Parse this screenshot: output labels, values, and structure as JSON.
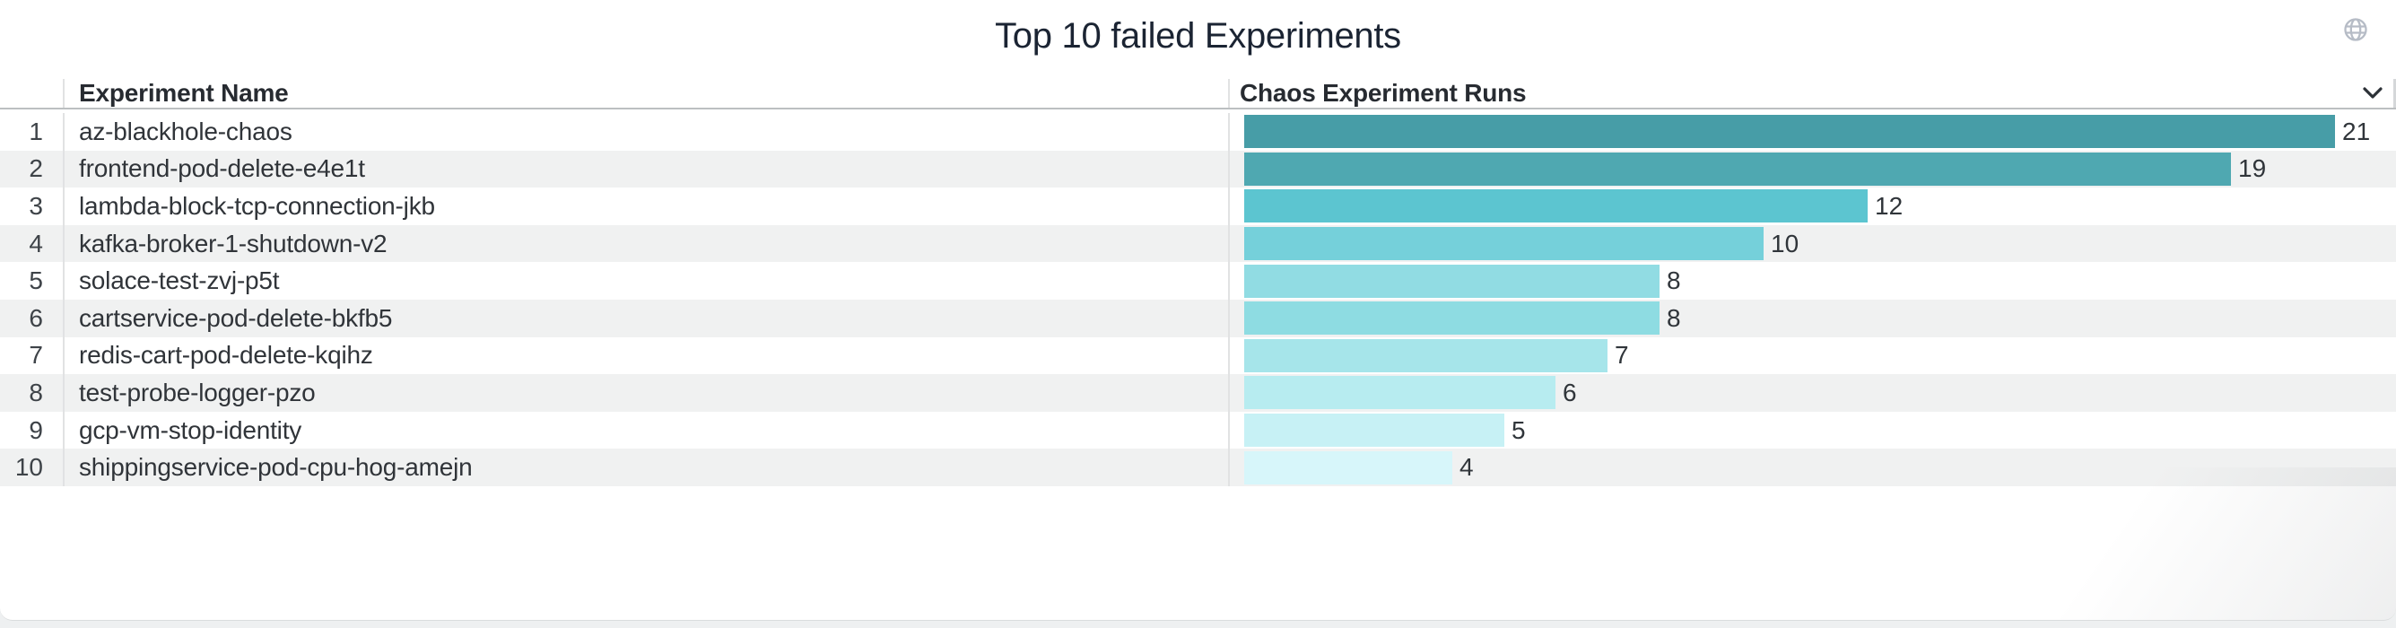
{
  "header": {
    "title": "Top 10 failed Experiments"
  },
  "icons": {
    "globe": "globe-icon",
    "chevron": "chevron-down-icon"
  },
  "table": {
    "columns": [
      "Experiment Name",
      "Chaos Experiment Runs"
    ]
  },
  "chart_data": {
    "type": "bar",
    "orientation": "horizontal",
    "title": "Top 10 failed Experiments",
    "categories": [
      "az-blackhole-chaos",
      "frontend-pod-delete-e4e1t",
      "lambda-block-tcp-connection-jkb",
      "kafka-broker-1-shutdown-v2",
      "solace-test-zvj-p5t",
      "cartservice-pod-delete-bkfb5",
      "redis-cart-pod-delete-kqihz",
      "test-probe-logger-pzo",
      "gcp-vm-stop-identity",
      "shippingservice-pod-cpu-hog-amejn"
    ],
    "ranks": [
      1,
      2,
      3,
      4,
      5,
      6,
      7,
      8,
      9,
      10
    ],
    "values": [
      21,
      19,
      12,
      10,
      8,
      8,
      7,
      6,
      5,
      4
    ],
    "xlabel": "Chaos Experiment Runs",
    "ylabel": "Experiment Name",
    "xlim": [
      0,
      21
    ],
    "grid": "off",
    "legend": "none",
    "value_labels": "end-of-bar",
    "bar_colors": [
      "#479da7",
      "#4fa8b1",
      "#5cc5d0",
      "#75d0da",
      "#91dce3",
      "#8edce2",
      "#a6e5ea",
      "#b7ecf0",
      "#c7f1f5",
      "#d7f6fa"
    ]
  },
  "colors": {
    "title_text": "#1b2433",
    "header_text": "#272b31",
    "body_text": "#303439",
    "row_stripe": "#f0f1f1",
    "header_divider": "#bcbfc1",
    "column_line": "#e1e2e3",
    "icon_gray": "#b6bcc6",
    "page_background": "#eef0f1"
  }
}
